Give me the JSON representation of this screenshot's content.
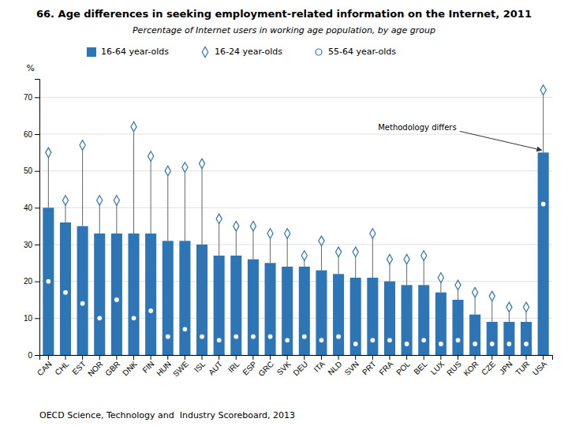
{
  "chart_data": {
    "type": "bar",
    "title": "66.  Age differences in seeking employment-related information on the Internet, 2011",
    "subtitle": "Percentage of Internet users in working age population, by age group",
    "ylabel": "%",
    "categories": [
      "CAN",
      "CHL",
      "EST",
      "NOR",
      "GBR",
      "DNK",
      "FIN",
      "HUN",
      "SWE",
      "ISL",
      "AUT",
      "IRL",
      "ESP",
      "GRC",
      "SVK",
      "DEU",
      "ITA",
      "NLD",
      "SVN",
      "PRT",
      "FRA",
      "POL",
      "BEL",
      "LUX",
      "RUS",
      "KOR",
      "CZE",
      "JPN",
      "TUR",
      "USA"
    ],
    "series": [
      {
        "name": "16-64 year-olds",
        "type": "bar",
        "color": "#2e75b6",
        "values": [
          40,
          36,
          35,
          33,
          33,
          33,
          33,
          31,
          31,
          30,
          27,
          27,
          26,
          25,
          24,
          24,
          23,
          22,
          21,
          21,
          20,
          19,
          19,
          17,
          15,
          11,
          9,
          9,
          9,
          55
        ]
      },
      {
        "name": "16-24 year-olds",
        "type": "scatter",
        "marker": "diamond",
        "color": "#2e75b6",
        "values": [
          55,
          42,
          57,
          42,
          42,
          62,
          54,
          50,
          51,
          52,
          37,
          35,
          35,
          33,
          33,
          27,
          31,
          28,
          28,
          33,
          26,
          26,
          27,
          21,
          19,
          17,
          16,
          13,
          13,
          72
        ]
      },
      {
        "name": "55-64 year-olds",
        "type": "scatter",
        "marker": "circle",
        "color": "#2e75b6",
        "values": [
          20,
          17,
          14,
          10,
          15,
          10,
          12,
          5,
          7,
          5,
          4,
          5,
          5,
          5,
          4,
          5,
          4,
          5,
          3,
          4,
          4,
          3,
          4,
          3,
          4,
          3,
          3,
          3,
          3,
          41
        ]
      }
    ],
    "ylim": [
      0,
      75
    ],
    "yticks": [
      0,
      10,
      20,
      30,
      40,
      50,
      60,
      70
    ],
    "grid": true,
    "annotations": [
      {
        "text": "Methodology differs",
        "x": "USA"
      }
    ],
    "footer": "OECD Science, Technology and  Industry Scoreboard, 2013"
  }
}
